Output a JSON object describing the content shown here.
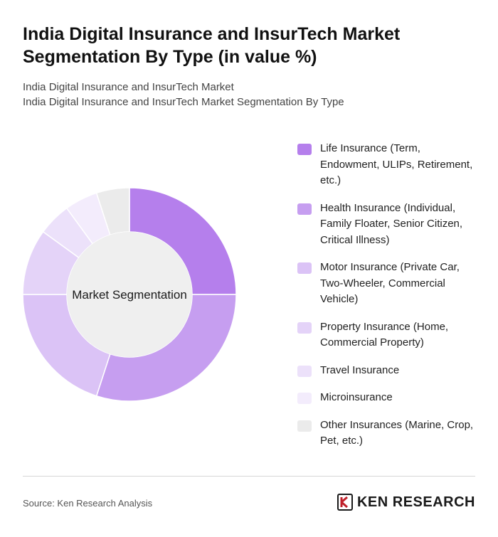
{
  "header": {
    "title": "India Digital Insurance and InsurTech Market Segmentation By Type (in value %)",
    "subtitle_line1": "India Digital Insurance and InsurTech Market",
    "subtitle_line2": "India Digital Insurance and InsurTech Market Segmentation By Type"
  },
  "chart_data": {
    "type": "pie",
    "center_label": "Market Segmentation",
    "categories": [
      "Life Insurance (Term, Endowment, ULIPs, Retirement, etc.)",
      "Health Insurance (Individual, Family Floater, Senior Citizen, Critical Illness)",
      "Motor Insurance (Private Car, Two-Wheeler, Commercial Vehicle)",
      "Property Insurance (Home, Commercial Property)",
      "Travel Insurance",
      "Microinsurance",
      "Other Insurances (Marine, Crop, Pet, etc.)"
    ],
    "values": [
      25,
      30,
      20,
      10,
      5,
      5,
      5
    ],
    "colors": [
      "#b57fec",
      "#c69ef0",
      "#dbc3f6",
      "#e4d3f8",
      "#ece1fa",
      "#f3ecfc",
      "#ebebeb"
    ],
    "legend_position": "right"
  },
  "footer": {
    "source": "Source: Ken Research Analysis",
    "logo_text": "KEN RESEARCH"
  }
}
